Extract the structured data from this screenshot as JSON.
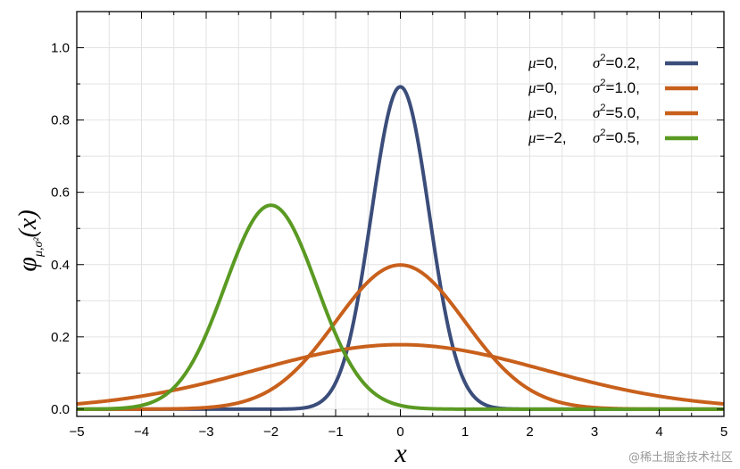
{
  "chart_data": {
    "type": "line",
    "title": "",
    "xlabel": "x",
    "ylabel_main": "φ",
    "ylabel_sub": "μ,σ²",
    "ylabel_arg": "(x)",
    "xlim": [
      -5,
      5
    ],
    "ylim": [
      -0.02,
      1.1
    ],
    "x_ticks": [
      -5,
      -4,
      -3,
      -2,
      -1,
      0,
      1,
      2,
      3,
      4,
      5
    ],
    "x_tick_labels": [
      "−5",
      "−4",
      "−3",
      "−2",
      "−1",
      "0",
      "1",
      "2",
      "3",
      "4",
      "5"
    ],
    "y_ticks": [
      0.0,
      0.2,
      0.4,
      0.6,
      0.8,
      1.0
    ],
    "y_tick_labels": [
      "0.0",
      "0.2",
      "0.4",
      "0.6",
      "0.8",
      "1.0"
    ],
    "grid": true,
    "legend_position": "top-right",
    "series": [
      {
        "mu": 0,
        "sigma2": 0.2,
        "color": "#3b4d7a",
        "mu_text": "0,",
        "sigma_text": "0.2,"
      },
      {
        "mu": 0,
        "sigma2": 1.0,
        "color": "#c8601c",
        "mu_text": "0,",
        "sigma_text": "1.0,"
      },
      {
        "mu": 0,
        "sigma2": 5.0,
        "color": "#c8601c",
        "mu_text": "0,",
        "sigma_text": "5.0,"
      },
      {
        "mu": -2,
        "sigma2": 0.5,
        "color": "#5a9a22",
        "mu_text": "−2,",
        "sigma_text": "0.5,"
      }
    ]
  },
  "legend_symbols": {
    "mu": "μ",
    "equals": "=",
    "sigma": "σ",
    "sup": "2"
  },
  "watermark": "@稀土掘金技术社区"
}
